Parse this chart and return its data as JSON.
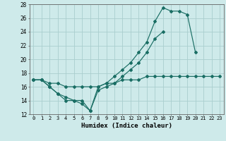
{
  "xlabel": "Humidex (Indice chaleur)",
  "bg_color": "#ceeaea",
  "grid_color": "#aacece",
  "line_color": "#1a6e64",
  "xlim": [
    -0.5,
    23.5
  ],
  "ylim": [
    12,
    28
  ],
  "xticks": [
    0,
    1,
    2,
    3,
    4,
    5,
    6,
    7,
    8,
    9,
    10,
    11,
    12,
    13,
    14,
    15,
    16,
    17,
    18,
    19,
    20,
    21,
    22,
    23
  ],
  "yticks": [
    12,
    14,
    16,
    18,
    20,
    22,
    24,
    26,
    28
  ],
  "line1_y": [
    17.0,
    17.0,
    16.0,
    15.0,
    14.0,
    14.0,
    13.5,
    12.5,
    15.5,
    16.0,
    16.5,
    17.5,
    18.5,
    19.5,
    21.0,
    23.0,
    24.0,
    null,
    null,
    null,
    null,
    null,
    null,
    null
  ],
  "line2_y": [
    17.0,
    17.0,
    16.0,
    15.0,
    14.5,
    14.0,
    14.0,
    12.5,
    16.0,
    16.5,
    17.5,
    18.5,
    19.5,
    21.0,
    22.5,
    25.5,
    27.5,
    27.0,
    27.0,
    26.5,
    21.0,
    null,
    null,
    null
  ],
  "line3_y": [
    17.0,
    17.0,
    16.5,
    16.5,
    16.0,
    16.0,
    16.0,
    16.0,
    16.0,
    16.5,
    16.5,
    17.0,
    17.0,
    17.0,
    17.5,
    17.5,
    17.5,
    17.5,
    17.5,
    17.5,
    17.5,
    17.5,
    17.5,
    17.5
  ]
}
